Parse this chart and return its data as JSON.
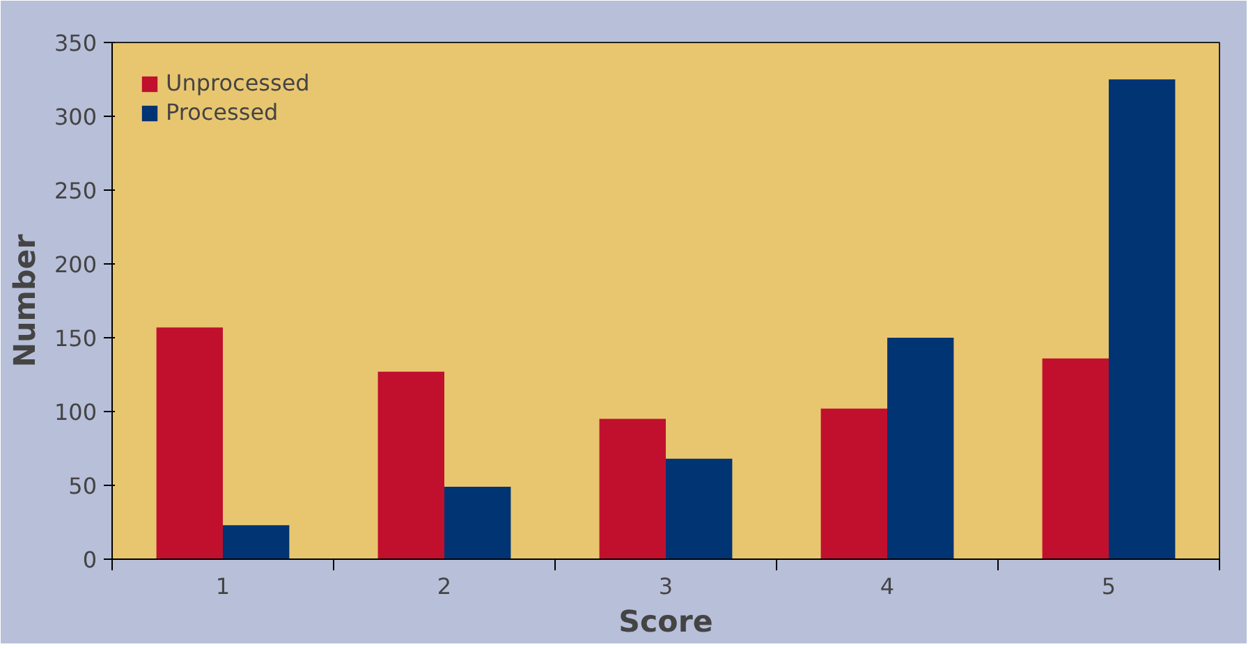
{
  "chart_data": {
    "type": "bar",
    "xlabel": "Score",
    "ylabel": "Number",
    "categories": [
      "1",
      "2",
      "3",
      "4",
      "5"
    ],
    "series": [
      {
        "name": "Unprocessed",
        "color": "#c0102e",
        "values": [
          157,
          127,
          95,
          102,
          136
        ]
      },
      {
        "name": "Processed",
        "color": "#003473",
        "values": [
          23,
          49,
          68,
          150,
          325
        ]
      }
    ],
    "ylim": [
      0,
      350
    ],
    "yticks": [
      0,
      50,
      100,
      150,
      200,
      250,
      300,
      350
    ],
    "grid": false,
    "legend": "top left"
  }
}
